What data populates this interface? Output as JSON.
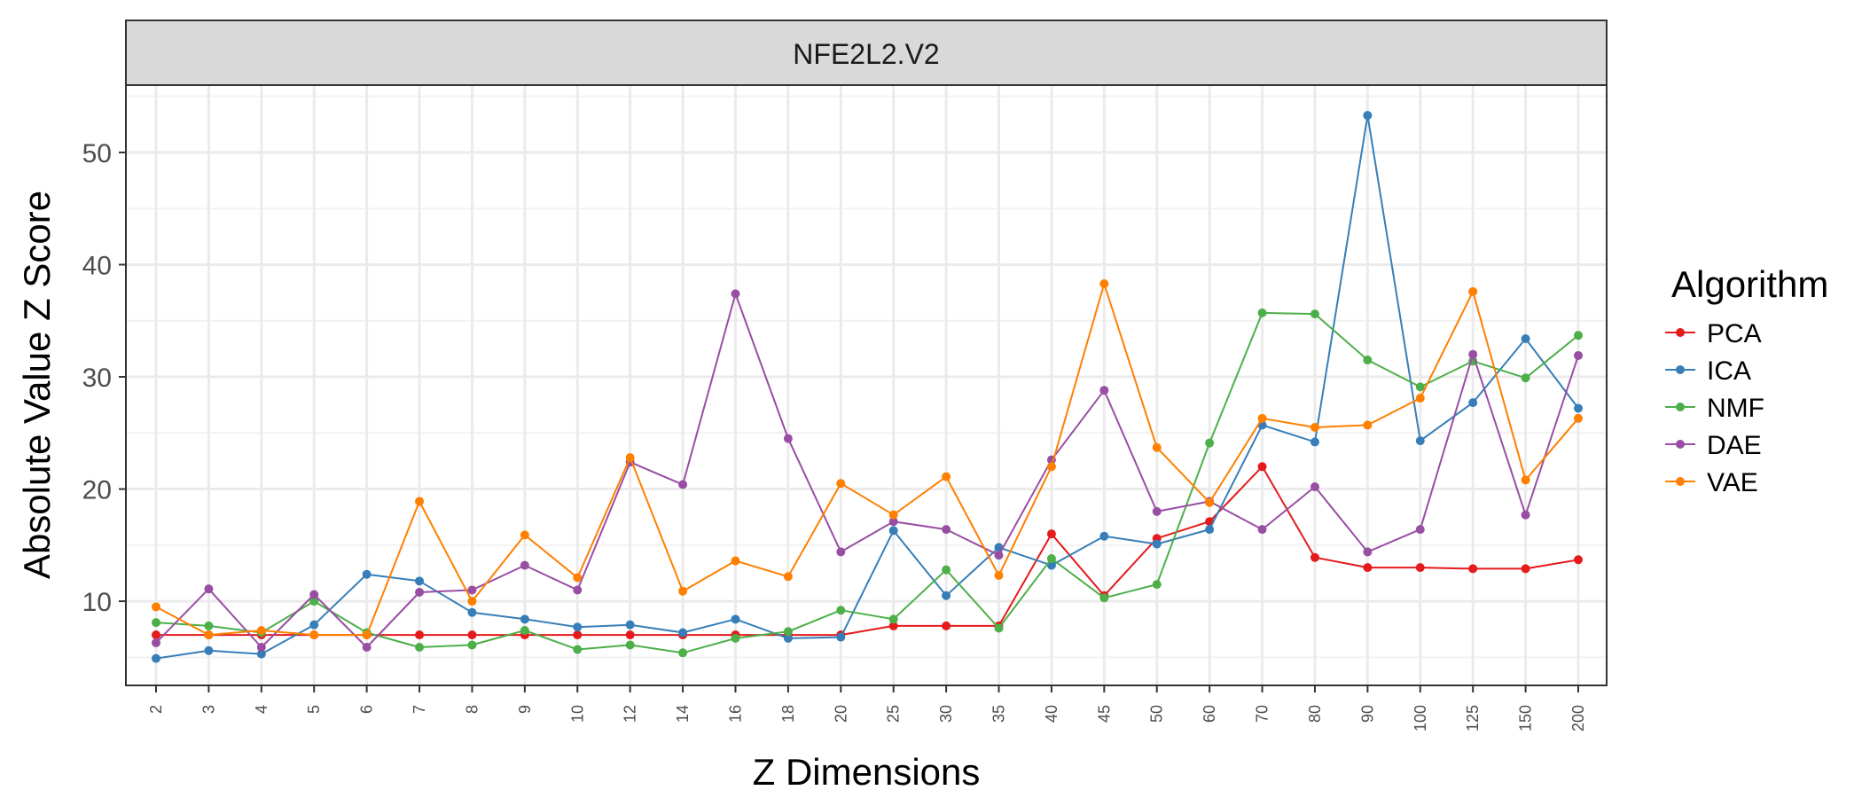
{
  "chart_data": {
    "type": "line",
    "facet_title": "NFE2L2.V2",
    "xlabel": "Z Dimensions",
    "ylabel": "Absolute Value Z Score",
    "categories": [
      "2",
      "3",
      "4",
      "5",
      "6",
      "7",
      "8",
      "9",
      "10",
      "12",
      "14",
      "16",
      "18",
      "20",
      "25",
      "30",
      "35",
      "40",
      "45",
      "50",
      "60",
      "70",
      "80",
      "90",
      "100",
      "125",
      "150",
      "200"
    ],
    "ylim": [
      2.5,
      56
    ],
    "yticks": [
      10,
      20,
      30,
      40,
      50
    ],
    "grid": true,
    "legend": {
      "title": "Algorithm",
      "placement": "right"
    },
    "series": [
      {
        "name": "PCA",
        "color": "#e41a1c",
        "values": [
          7.0,
          7.0,
          7.0,
          7.0,
          7.0,
          7.0,
          7.0,
          7.0,
          7.0,
          7.0,
          7.0,
          7.0,
          7.0,
          7.0,
          7.8,
          7.8,
          7.8,
          16.0,
          10.5,
          15.6,
          17.1,
          22.0,
          13.9,
          13.0,
          13.0,
          12.9,
          12.9,
          13.7
        ]
      },
      {
        "name": "ICA",
        "color": "#377eb8",
        "values": [
          4.9,
          5.6,
          5.3,
          7.9,
          12.4,
          11.8,
          9.0,
          8.4,
          7.7,
          7.9,
          7.2,
          8.4,
          6.7,
          6.8,
          16.3,
          10.5,
          14.8,
          13.2,
          15.8,
          15.1,
          16.4,
          25.7,
          24.2,
          53.3,
          24.3,
          27.7,
          33.4,
          27.2
        ]
      },
      {
        "name": "NMF",
        "color": "#4daf4a",
        "values": [
          8.1,
          7.8,
          7.2,
          10.0,
          7.2,
          5.9,
          6.1,
          7.4,
          5.7,
          6.1,
          5.4,
          6.7,
          7.3,
          9.2,
          8.4,
          12.8,
          7.6,
          13.8,
          10.3,
          11.5,
          24.1,
          35.7,
          35.6,
          31.5,
          29.1,
          31.4,
          29.9,
          33.7
        ]
      },
      {
        "name": "DAE",
        "color": "#984ea3",
        "values": [
          6.3,
          11.1,
          5.9,
          10.6,
          5.9,
          10.8,
          11.0,
          13.2,
          11.0,
          22.4,
          20.4,
          37.4,
          24.5,
          14.4,
          17.1,
          16.4,
          14.1,
          22.6,
          28.8,
          18.0,
          18.9,
          16.4,
          20.2,
          14.4,
          16.4,
          32.0,
          17.7,
          31.9
        ]
      },
      {
        "name": "VAE",
        "color": "#ff7f00",
        "values": [
          9.5,
          7.0,
          7.4,
          7.0,
          7.0,
          18.9,
          10.0,
          15.9,
          12.1,
          22.8,
          10.9,
          13.6,
          12.2,
          20.5,
          17.7,
          21.1,
          12.3,
          22.0,
          38.3,
          23.7,
          18.8,
          26.3,
          25.5,
          25.7,
          28.1,
          37.6,
          20.8,
          26.3
        ]
      }
    ]
  }
}
